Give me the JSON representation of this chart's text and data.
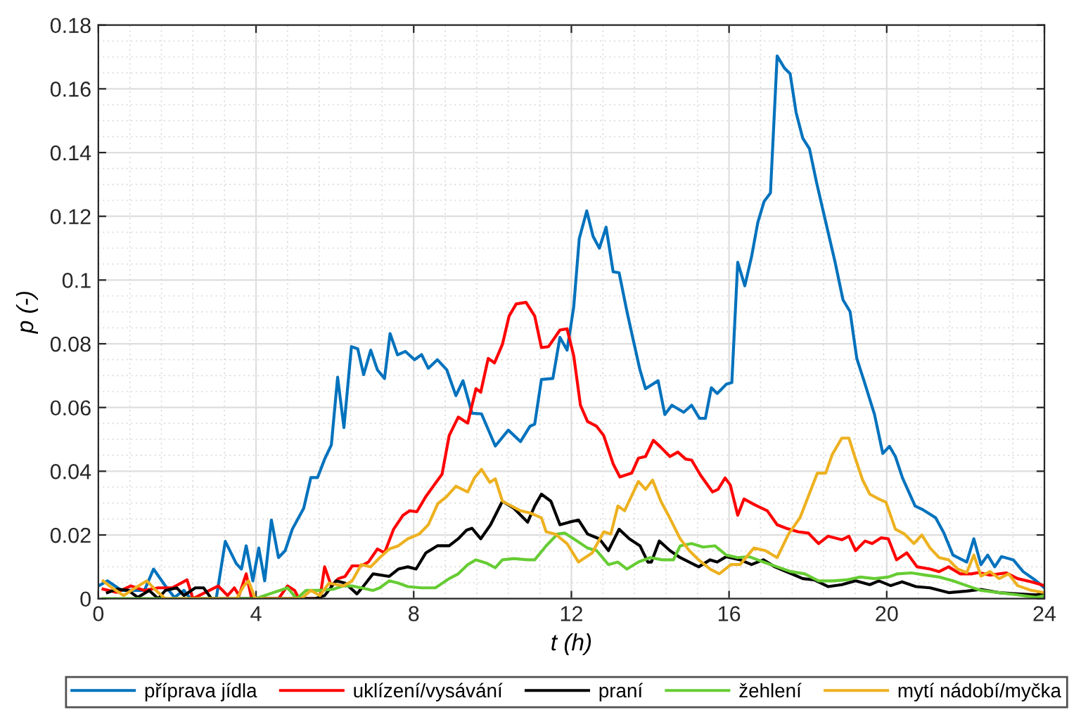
{
  "chart_data": {
    "type": "line",
    "xlabel": "t (h)",
    "ylabel": "p (-)",
    "xlim": [
      0,
      24
    ],
    "xticks": [
      0,
      4,
      8,
      12,
      16,
      20,
      24
    ],
    "ylim": [
      0,
      0.18
    ],
    "yticks": [
      0,
      0.02,
      0.04,
      0.06,
      0.08,
      0.1,
      0.12,
      0.14,
      0.16,
      0.18
    ],
    "grid": true,
    "legend": "bottom",
    "line_style": "solid",
    "marker": "none",
    "series": [
      {
        "name": "příprava jídla",
        "color": "#0072bd",
        "x": [
          0,
          0.23,
          0.59,
          1.17,
          1.4,
          1.7,
          1.93,
          2.17,
          2.34,
          2.7,
          2.99,
          3.22,
          3.5,
          3.63,
          3.75,
          3.92,
          4.07,
          4.22,
          4.39,
          4.57,
          4.74,
          4.92,
          5.21,
          5.39,
          5.56,
          5.74,
          5.91,
          6.07,
          6.23,
          6.42,
          6.58,
          6.73,
          6.91,
          7.08,
          7.26,
          7.4,
          7.59,
          7.79,
          8.02,
          8.2,
          8.37,
          8.6,
          8.84,
          9.07,
          9.25,
          9.48,
          9.72,
          10.07,
          10.4,
          10.71,
          10.95,
          11.07,
          11.24,
          11.53,
          11.71,
          11.89,
          12.06,
          12.2,
          12.39,
          12.55,
          12.71,
          12.88,
          13.06,
          13.21,
          13.41,
          13.58,
          13.74,
          13.88,
          14.2,
          14.37,
          14.55,
          14.85,
          15.05,
          15.25,
          15.4,
          15.55,
          15.7,
          15.93,
          16.07,
          16.22,
          16.4,
          16.57,
          16.73,
          16.89,
          17.05,
          17.22,
          17.4,
          17.55,
          17.7,
          17.87,
          18.04,
          18.22,
          18.4,
          18.69,
          18.89,
          19.07,
          19.24,
          19.43,
          19.69,
          19.9,
          20.07,
          20.22,
          20.4,
          20.72,
          20.92,
          21.24,
          21.45,
          21.68,
          22.03,
          22.21,
          22.39,
          22.56,
          22.74,
          22.91,
          23.21,
          23.46,
          23.79,
          24.0
        ],
        "values": [
          0.004,
          0.0056,
          0.0026,
          0.0026,
          0.0093,
          0.004,
          0.0004,
          0.0026,
          0,
          0,
          0,
          0.018,
          0.011,
          0.0093,
          0.0166,
          0.0056,
          0.0159,
          0.0056,
          0.0247,
          0.0129,
          0.0151,
          0.0218,
          0.0284,
          0.038,
          0.038,
          0.0438,
          0.0482,
          0.0695,
          0.0537,
          0.0791,
          0.0784,
          0.0703,
          0.078,
          0.0718,
          0.0691,
          0.0832,
          0.0765,
          0.0776,
          0.075,
          0.0766,
          0.0723,
          0.075,
          0.0718,
          0.0637,
          0.0684,
          0.0582,
          0.058,
          0.0479,
          0.0529,
          0.0493,
          0.0541,
          0.0548,
          0.0688,
          0.0691,
          0.082,
          0.078,
          0.0916,
          0.113,
          0.1217,
          0.1137,
          0.11,
          0.1166,
          0.1026,
          0.1023,
          0.0901,
          0.0806,
          0.0718,
          0.0659,
          0.0684,
          0.0578,
          0.0607,
          0.0585,
          0.0607,
          0.0566,
          0.0566,
          0.0662,
          0.0644,
          0.0673,
          0.0678,
          0.1056,
          0.0982,
          0.1073,
          0.1181,
          0.1247,
          0.1273,
          0.1703,
          0.1666,
          0.1647,
          0.1526,
          0.1445,
          0.1412,
          0.1306,
          0.121,
          0.1056,
          0.0938,
          0.0901,
          0.0754,
          0.0681,
          0.0578,
          0.0456,
          0.0478,
          0.0446,
          0.0379,
          0.0291,
          0.0279,
          0.0254,
          0.0206,
          0.0137,
          0.0115,
          0.0188,
          0.0107,
          0.0137,
          0.01,
          0.0132,
          0.0122,
          0.0085,
          0.0056,
          0.0034
        ]
      },
      {
        "name": "uklízení/vysávání",
        "color": "#ff0000",
        "x": [
          0.12,
          0.47,
          0.82,
          1.17,
          1.52,
          1.87,
          2.25,
          2.4,
          3.04,
          3.28,
          3.45,
          3.57,
          3.75,
          3.89,
          4.57,
          4.8,
          4.98,
          5.09,
          5.62,
          5.74,
          5.91,
          6.09,
          6.26,
          6.44,
          6.67,
          6.85,
          7.08,
          7.26,
          7.49,
          7.73,
          7.9,
          8.08,
          8.31,
          8.55,
          8.72,
          8.9,
          9.13,
          9.37,
          9.58,
          9.7,
          9.89,
          10.05,
          10.25,
          10.42,
          10.6,
          10.85,
          11.07,
          11.24,
          11.42,
          11.71,
          11.89,
          12.06,
          12.23,
          12.41,
          12.64,
          12.82,
          13.06,
          13.23,
          13.53,
          13.7,
          13.88,
          14.08,
          14.27,
          14.5,
          14.7,
          14.9,
          15.05,
          15.28,
          15.58,
          15.72,
          15.9,
          16.03,
          16.22,
          16.38,
          16.66,
          16.97,
          17.22,
          17.45,
          17.75,
          18.01,
          18.27,
          18.51,
          18.86,
          19.04,
          19.21,
          19.45,
          19.63,
          19.86,
          20.04,
          20.25,
          20.51,
          20.77,
          21.1,
          21.33,
          21.57,
          21.86,
          22.15,
          22.33,
          22.62,
          23.03,
          23.32,
          23.67,
          24.0
        ],
        "values": [
          0.003,
          0.002,
          0.004,
          0.0026,
          0.0034,
          0.0034,
          0.0059,
          0,
          0.004,
          0.001,
          0.0034,
          0.001,
          0.0078,
          0,
          0,
          0.004,
          0.0026,
          0,
          0,
          0.01,
          0.004,
          0.0063,
          0.007,
          0.0103,
          0.0103,
          0.0115,
          0.0156,
          0.0144,
          0.0218,
          0.0262,
          0.0276,
          0.0273,
          0.0321,
          0.0362,
          0.0391,
          0.0512,
          0.057,
          0.0551,
          0.0659,
          0.0648,
          0.0754,
          0.074,
          0.0798,
          0.0887,
          0.0925,
          0.093,
          0.0887,
          0.0788,
          0.0791,
          0.0843,
          0.0847,
          0.0762,
          0.0607,
          0.0556,
          0.0541,
          0.0512,
          0.0423,
          0.0382,
          0.0394,
          0.0441,
          0.0446,
          0.0497,
          0.0475,
          0.0446,
          0.046,
          0.0438,
          0.0435,
          0.0387,
          0.0335,
          0.0343,
          0.0379,
          0.0357,
          0.0262,
          0.0313,
          0.0294,
          0.0276,
          0.0232,
          0.0221,
          0.021,
          0.0206,
          0.0173,
          0.0196,
          0.0185,
          0.0196,
          0.0151,
          0.0181,
          0.0173,
          0.0191,
          0.0188,
          0.0122,
          0.0144,
          0.01,
          0.0093,
          0.0085,
          0.01,
          0.0078,
          0.0078,
          0.0082,
          0.0074,
          0.0081,
          0.0063,
          0.0053,
          0.0041
        ]
      },
      {
        "name": "praní",
        "color": "#000000",
        "x": [
          0.23,
          0.47,
          0.76,
          1.0,
          1.29,
          1.52,
          1.7,
          1.99,
          2.17,
          2.46,
          2.67,
          2.87,
          5.5,
          5.74,
          6.03,
          6.26,
          6.56,
          6.73,
          6.97,
          7.38,
          7.61,
          7.85,
          8.06,
          8.31,
          8.6,
          8.9,
          9.13,
          9.34,
          9.48,
          9.7,
          9.95,
          10.25,
          10.54,
          10.89,
          11.07,
          11.24,
          11.48,
          11.71,
          11.94,
          12.18,
          12.41,
          12.71,
          12.94,
          13.21,
          13.47,
          13.74,
          13.94,
          14.03,
          14.23,
          14.5,
          14.76,
          14.99,
          15.23,
          15.52,
          15.7,
          15.93,
          16.28,
          16.57,
          16.87,
          17.16,
          17.51,
          17.87,
          18.16,
          18.51,
          18.86,
          19.21,
          19.57,
          19.8,
          20.1,
          20.39,
          20.74,
          21.1,
          21.57,
          22.03,
          22.39,
          22.85,
          23.32,
          23.79,
          24.0
        ],
        "values": [
          0.0019,
          0.003,
          0.0026,
          0.0004,
          0.0026,
          0,
          0.0026,
          0.0034,
          0.001,
          0.0034,
          0.0034,
          0,
          0,
          0.001,
          0.0056,
          0.0049,
          0.0015,
          0.004,
          0.0078,
          0.007,
          0.0093,
          0.01,
          0.0093,
          0.0144,
          0.0166,
          0.0166,
          0.0188,
          0.0215,
          0.0221,
          0.0188,
          0.0232,
          0.0306,
          0.0284,
          0.024,
          0.0291,
          0.0328,
          0.0306,
          0.0232,
          0.024,
          0.0247,
          0.0203,
          0.0188,
          0.0151,
          0.0218,
          0.0188,
          0.0166,
          0.0115,
          0.0115,
          0.0181,
          0.0151,
          0.0129,
          0.0115,
          0.01,
          0.0122,
          0.0115,
          0.0132,
          0.0122,
          0.0107,
          0.0122,
          0.01,
          0.0082,
          0.0063,
          0.0059,
          0.0038,
          0.0044,
          0.0056,
          0.0044,
          0.0056,
          0.0041,
          0.0053,
          0.0038,
          0.0034,
          0.0019,
          0.0024,
          0.0029,
          0.0019,
          0.0015,
          0.0012,
          0.0019
        ]
      },
      {
        "name": "žehlení",
        "color": "#66cc33",
        "x": [
          0.12,
          3.98,
          4.8,
          5.03,
          5.27,
          5.62,
          5.97,
          6.21,
          6.44,
          6.67,
          6.97,
          7.14,
          7.38,
          7.61,
          7.85,
          8.2,
          8.55,
          8.9,
          9.13,
          9.37,
          9.58,
          9.84,
          10.07,
          10.25,
          10.54,
          10.89,
          11.07,
          11.36,
          11.65,
          11.83,
          12.06,
          12.41,
          12.64,
          12.94,
          13.18,
          13.41,
          13.7,
          14.0,
          14.3,
          14.59,
          14.76,
          15.05,
          15.34,
          15.64,
          15.93,
          16.22,
          16.51,
          16.87,
          17.22,
          17.57,
          17.92,
          18.27,
          18.63,
          18.98,
          19.33,
          19.69,
          20.04,
          20.27,
          20.63,
          20.98,
          21.33,
          21.68,
          22.03,
          22.39,
          22.85,
          23.32,
          23.79,
          24.0
        ],
        "values": [
          0,
          0,
          0.0034,
          0,
          0.0026,
          0.0026,
          0.003,
          0.004,
          0.004,
          0.0034,
          0.0026,
          0.0034,
          0.0056,
          0.0049,
          0.0038,
          0.0034,
          0.0034,
          0.0063,
          0.0078,
          0.0107,
          0.0122,
          0.0112,
          0.0097,
          0.0122,
          0.0126,
          0.0122,
          0.0122,
          0.0166,
          0.0203,
          0.0206,
          0.0188,
          0.0159,
          0.0151,
          0.0107,
          0.0115,
          0.0093,
          0.0115,
          0.0129,
          0.0122,
          0.0122,
          0.0166,
          0.0173,
          0.0162,
          0.0166,
          0.0137,
          0.0129,
          0.0132,
          0.0115,
          0.01,
          0.0085,
          0.0078,
          0.0056,
          0.0056,
          0.0059,
          0.0068,
          0.0063,
          0.0068,
          0.0078,
          0.0081,
          0.0074,
          0.0068,
          0.0056,
          0.0041,
          0.0026,
          0.0019,
          0.0012,
          0.0004,
          0.0009
        ]
      },
      {
        "name": "mytí nádobí/myčka",
        "color": "#edb120",
        "x": [
          0.12,
          0.35,
          0.64,
          0.94,
          1.23,
          1.46,
          1.7,
          3.51,
          3.69,
          3.81,
          3.98,
          5.15,
          5.39,
          5.62,
          5.85,
          6.21,
          6.44,
          6.67,
          6.91,
          7.14,
          7.38,
          7.61,
          7.85,
          8.14,
          8.37,
          8.61,
          8.84,
          9.07,
          9.37,
          9.54,
          9.72,
          9.93,
          10.07,
          10.25,
          10.48,
          10.71,
          10.95,
          11.24,
          11.36,
          11.59,
          11.89,
          12.18,
          12.53,
          12.82,
          13.0,
          13.18,
          13.35,
          13.7,
          13.88,
          14.06,
          14.27,
          14.46,
          14.76,
          14.99,
          15.23,
          15.52,
          15.75,
          16.05,
          16.28,
          16.63,
          16.92,
          17.22,
          17.51,
          17.8,
          18.01,
          18.24,
          18.45,
          18.62,
          18.86,
          19.04,
          19.21,
          19.39,
          19.57,
          19.8,
          19.98,
          20.22,
          20.45,
          20.69,
          20.89,
          21.1,
          21.33,
          21.57,
          21.8,
          22.03,
          22.21,
          22.39,
          22.62,
          22.85,
          23.09,
          23.32,
          23.67,
          24.0
        ],
        "values": [
          0.0056,
          0.0034,
          0.001,
          0.0034,
          0.0056,
          0.0026,
          0,
          0,
          0.004,
          0.0056,
          0,
          0,
          0.0026,
          0.001,
          0.0049,
          0.004,
          0.0056,
          0.0107,
          0.01,
          0.0129,
          0.0156,
          0.0166,
          0.0188,
          0.0203,
          0.0232,
          0.0298,
          0.0321,
          0.0353,
          0.0335,
          0.0379,
          0.0406,
          0.0365,
          0.0376,
          0.0306,
          0.0291,
          0.0276,
          0.0269,
          0.0254,
          0.021,
          0.0203,
          0.0173,
          0.0115,
          0.0144,
          0.021,
          0.0203,
          0.0291,
          0.0276,
          0.0368,
          0.0343,
          0.0372,
          0.0306,
          0.0262,
          0.0188,
          0.0151,
          0.0122,
          0.0093,
          0.0078,
          0.0107,
          0.0107,
          0.0159,
          0.0151,
          0.0129,
          0.0203,
          0.0254,
          0.0321,
          0.0394,
          0.0394,
          0.0453,
          0.0504,
          0.0504,
          0.0438,
          0.0372,
          0.0328,
          0.0313,
          0.0303,
          0.0218,
          0.0203,
          0.0173,
          0.02,
          0.0159,
          0.0129,
          0.0122,
          0.0093,
          0.0082,
          0.0137,
          0.0071,
          0.0085,
          0.0063,
          0.0078,
          0.0041,
          0.0026,
          0.0019
        ]
      }
    ]
  }
}
